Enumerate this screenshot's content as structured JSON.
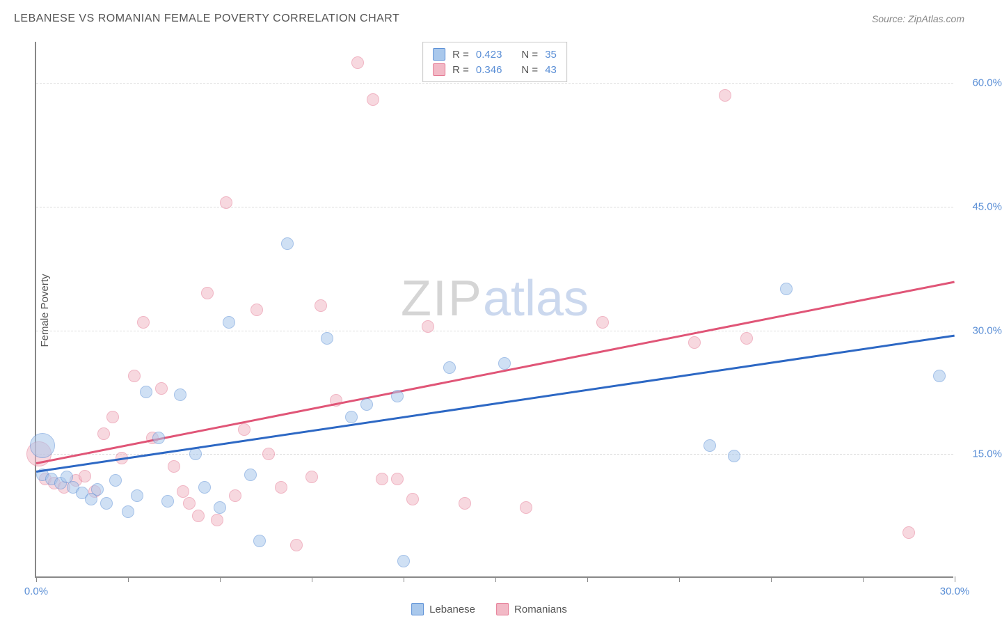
{
  "title": "LEBANESE VS ROMANIAN FEMALE POVERTY CORRELATION CHART",
  "source": "Source: ZipAtlas.com",
  "watermark_zip": "ZIP",
  "watermark_atlas": "atlas",
  "y_axis_label": "Female Poverty",
  "chart": {
    "type": "scatter",
    "x_domain": [
      0,
      30
    ],
    "y_domain": [
      0,
      65
    ],
    "x_ticks": [
      0,
      3,
      6,
      9,
      12,
      15,
      18,
      21,
      24,
      27,
      30
    ],
    "x_tick_labels": {
      "0": "0.0%",
      "30": "30.0%"
    },
    "y_gridlines": [
      15,
      30,
      45,
      60
    ],
    "y_tick_labels": {
      "15": "15.0%",
      "30": "30.0%",
      "45": "45.0%",
      "60": "60.0%"
    },
    "background_color": "#ffffff",
    "grid_color": "#dddddd",
    "axis_color": "#888888",
    "tick_label_color": "#5b8fd6",
    "point_radius": 9,
    "point_opacity": 0.55
  },
  "series": {
    "lebanese": {
      "label": "Lebanese",
      "fill": "#a9c8ec",
      "stroke": "#5b8fd6",
      "line_color": "#2d68c4",
      "R_label": "R =",
      "R_value": "0.423",
      "N_label": "N =",
      "N_value": "35",
      "trend": {
        "x1": 0,
        "y1": 13.0,
        "x2": 30,
        "y2": 29.5
      },
      "points": [
        [
          0.2,
          16.0,
          "big"
        ],
        [
          0.2,
          12.5
        ],
        [
          0.5,
          12.0
        ],
        [
          0.8,
          11.5
        ],
        [
          1.0,
          12.2
        ],
        [
          1.2,
          11.0
        ],
        [
          1.5,
          10.3
        ],
        [
          1.8,
          9.5
        ],
        [
          2.0,
          10.7
        ],
        [
          2.3,
          9.0
        ],
        [
          2.6,
          11.8
        ],
        [
          3.0,
          8.0
        ],
        [
          3.3,
          10.0
        ],
        [
          3.6,
          22.5
        ],
        [
          4.0,
          17.0
        ],
        [
          4.3,
          9.3
        ],
        [
          4.7,
          22.2
        ],
        [
          5.2,
          15.0
        ],
        [
          5.5,
          11.0
        ],
        [
          6.0,
          8.5
        ],
        [
          6.3,
          31.0
        ],
        [
          7.0,
          12.5
        ],
        [
          7.3,
          4.5
        ],
        [
          8.2,
          40.5
        ],
        [
          9.5,
          29.0
        ],
        [
          10.3,
          19.5
        ],
        [
          10.8,
          21.0
        ],
        [
          11.8,
          22.0
        ],
        [
          12.0,
          2.0
        ],
        [
          13.5,
          25.5
        ],
        [
          15.3,
          26.0
        ],
        [
          22.0,
          16.0
        ],
        [
          22.8,
          14.8
        ],
        [
          24.5,
          35.0
        ],
        [
          29.5,
          24.5
        ]
      ]
    },
    "romanians": {
      "label": "Romanians",
      "fill": "#f2b9c6",
      "stroke": "#e57a94",
      "line_color": "#e05577",
      "R_label": "R =",
      "R_value": "0.346",
      "N_label": "N =",
      "N_value": "43",
      "trend": {
        "x1": 0,
        "y1": 14.0,
        "x2": 30,
        "y2": 36.0
      },
      "points": [
        [
          0.1,
          15.0,
          "big"
        ],
        [
          0.3,
          12.0
        ],
        [
          0.6,
          11.5
        ],
        [
          0.9,
          11.0
        ],
        [
          1.3,
          11.8
        ],
        [
          1.6,
          12.3
        ],
        [
          1.9,
          10.5
        ],
        [
          2.2,
          17.5
        ],
        [
          2.5,
          19.5
        ],
        [
          2.8,
          14.5
        ],
        [
          3.2,
          24.5
        ],
        [
          3.5,
          31.0
        ],
        [
          3.8,
          17.0
        ],
        [
          4.1,
          23.0
        ],
        [
          4.5,
          13.5
        ],
        [
          4.8,
          10.5
        ],
        [
          5.0,
          9.0
        ],
        [
          5.3,
          7.5
        ],
        [
          5.6,
          34.5
        ],
        [
          5.9,
          7.0
        ],
        [
          6.2,
          45.5
        ],
        [
          6.5,
          10.0
        ],
        [
          6.8,
          18.0
        ],
        [
          7.2,
          32.5
        ],
        [
          7.6,
          15.0
        ],
        [
          8.0,
          11.0
        ],
        [
          8.5,
          4.0
        ],
        [
          9.0,
          12.2
        ],
        [
          9.3,
          33.0
        ],
        [
          9.8,
          21.5
        ],
        [
          10.5,
          62.5
        ],
        [
          11.0,
          58.0
        ],
        [
          11.3,
          12.0
        ],
        [
          11.8,
          12.0
        ],
        [
          12.3,
          9.5
        ],
        [
          12.8,
          30.5
        ],
        [
          14.0,
          9.0
        ],
        [
          16.0,
          8.5
        ],
        [
          18.5,
          31.0
        ],
        [
          21.5,
          28.5
        ],
        [
          22.5,
          58.5
        ],
        [
          23.2,
          29.0
        ],
        [
          28.5,
          5.5
        ]
      ]
    }
  }
}
